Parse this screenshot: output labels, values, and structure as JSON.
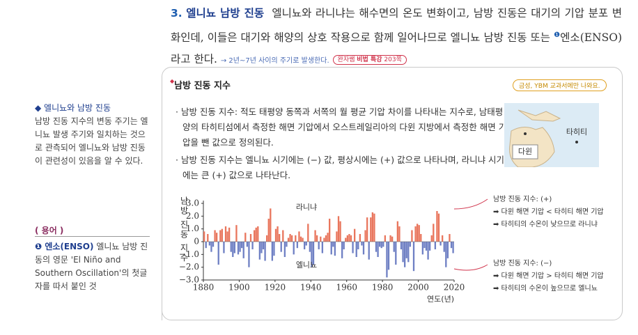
{
  "main": {
    "number": "3.",
    "heading": "엘니뇨 남방 진동",
    "body": "엘니뇨와 라니냐는 해수면의 온도 변화이고, 남방 진동은 대기의 기압 분포 변화인데, 이들은 대기와 해양의 상호 작용으로 함께 일어나므로 엘니뇨 남방 진동 또는 ",
    "footnote_mark": "❶",
    "body_end": "엔소(ENSO)라고 한다.",
    "note": "→ 2년~7년 사이의 주기로 발생한다.",
    "badge": {
      "top": "완자쌤",
      "main": "비법 특강",
      "page": "203쪽"
    }
  },
  "sidebar": {
    "title": "◆ 엘니뇨와 남방 진동",
    "text": "남방 진동 지수의 변동 주기는 엘니뇨 발생 주기와 일치하는 것으로 관측되어 엘니뇨와 남방 진동이 관련성이 있음을 알 수 있다.",
    "glossary_title": "( 용어 )",
    "glossary_term": "❶ 엔소(ENSO)",
    "glossary_text": "엘니뇨 남방 진동의 영문 'El Niño and Southern Oscillation'의 첫글자를 따서 붙인 것"
  },
  "box": {
    "title": "남방 진동 지수",
    "tag": "금성, YBM 교과서에만 나와요.",
    "bullets": [
      "남방 진동 지수: 적도 태평양 동쪽과 서쪽의 월 평균 기압 차이를 나타내는 지수로, 남태평양의 타히티섬에서 측정한 해면 기압에서 오스트레일리아의 다윈 지방에서 측정한 해면 기압을 뺀 값으로 정의된다.",
      "남방 진동 지수는 엘니뇨 시기에는 (−) 값, 평상시에는 (+) 값으로 나타나며, 라니냐 시기에는 큰 (+) 값으로 나타난다."
    ],
    "map_labels": [
      "다윈",
      "타히티"
    ],
    "notes": [
      {
        "heading": "남방 진동 지수: (+)",
        "lines": [
          "➡ 다윈 해면 기압 < 타히티 해면 기압",
          "➡ 타히티의 수온이 낮으므로 라니냐"
        ]
      },
      {
        "heading": "남방 진동 지수: (−)",
        "lines": [
          "➡ 다윈 해면 기압 > 타히티 해면 기압",
          "➡ 타히티의 수온이 높으므로 엘니뇨"
        ]
      }
    ]
  },
  "chart_data": {
    "type": "bar",
    "ylabel": "남방 진동 지수",
    "xlabel": "연도(년)",
    "annotations": [
      "라니냐",
      "엘니뇨"
    ],
    "positive_color": "#e9765d",
    "negative_color": "#6f80c4",
    "xlim": [
      1880,
      2020
    ],
    "xticks": [
      1880,
      1900,
      1920,
      1940,
      1960,
      1980,
      2000,
      2020
    ],
    "ylim": [
      -3,
      3
    ],
    "yticks": [
      {
        "value": 3,
        "label": "3.0"
      },
      {
        "value": 2,
        "label": "2.0"
      },
      {
        "value": 1,
        "label": "1.0"
      },
      0,
      {
        "value": -1,
        "label": "−1.0"
      },
      {
        "value": -2,
        "label": "−2.0"
      },
      {
        "value": -3,
        "label": "−3.0"
      }
    ],
    "x": [
      1880,
      1881,
      1882,
      1883,
      1884,
      1885,
      1886,
      1887,
      1888,
      1889,
      1890,
      1891,
      1892,
      1893,
      1894,
      1895,
      1896,
      1897,
      1898,
      1899,
      1900,
      1901,
      1902,
      1903,
      1904,
      1905,
      1906,
      1907,
      1908,
      1909,
      1910,
      1911,
      1912,
      1913,
      1914,
      1915,
      1916,
      1917,
      1918,
      1919,
      1920,
      1921,
      1922,
      1923,
      1924,
      1925,
      1926,
      1927,
      1928,
      1929,
      1930,
      1931,
      1932,
      1933,
      1934,
      1935,
      1936,
      1937,
      1938,
      1939,
      1940,
      1941,
      1942,
      1943,
      1944,
      1945,
      1946,
      1947,
      1948,
      1949,
      1950,
      1951,
      1952,
      1953,
      1954,
      1955,
      1956,
      1957,
      1958,
      1959,
      1960,
      1961,
      1962,
      1963,
      1964,
      1965,
      1966,
      1967,
      1968,
      1969,
      1970,
      1971,
      1972,
      1973,
      1974,
      1975,
      1976,
      1977,
      1978,
      1979,
      1980,
      1981,
      1982,
      1983,
      1984,
      1985,
      1986,
      1987,
      1988,
      1989,
      1990,
      1991,
      1992,
      1993,
      1994,
      1995,
      1996,
      1997,
      1998,
      1999,
      2000,
      2001,
      2002,
      2003,
      2004,
      2005,
      2006,
      2007,
      2008,
      2009,
      2010,
      2011,
      2012,
      2013,
      2014,
      2015,
      2016,
      2017,
      2018,
      2019
    ],
    "values": [
      0.8,
      -0.5,
      0.6,
      -0.3,
      -0.8,
      -0.4,
      0.9,
      0.7,
      -1.8,
      0.9,
      1.0,
      -0.9,
      1.2,
      0.8,
      1.1,
      -0.8,
      -1.2,
      -0.9,
      1.3,
      -1.0,
      -0.8,
      -0.5,
      -1.3,
      0.7,
      -0.4,
      -2.0,
      0.6,
      -0.6,
      0.9,
      1.1,
      1.2,
      -1.4,
      -0.9,
      -0.6,
      -1.5,
      0.5,
      1.8,
      2.6,
      -1.5,
      -1.1,
      1.0,
      1.2,
      0.6,
      -0.8,
      0.9,
      -1.2,
      -0.4,
      0.3,
      0.6,
      0.5,
      -1.0,
      0.5,
      -0.5,
      0.8,
      0.4,
      0.3,
      -0.6,
      -0.3,
      1.4,
      -0.8,
      -2.0,
      -1.8,
      0.9,
      0.5,
      -0.6,
      0.4,
      -0.9,
      0.3,
      0.5,
      0.7,
      1.8,
      -1.0,
      -0.4,
      -1.1,
      0.8,
      2.0,
      1.6,
      -1.3,
      -0.6,
      0.3,
      0.5,
      0.6,
      0.5,
      -0.9,
      1.0,
      -1.2,
      -0.6,
      0.6,
      -0.3,
      -1.0,
      0.9,
      1.9,
      -1.4,
      1.9,
      2.3,
      2.2,
      -0.8,
      -1.2,
      -0.4,
      -0.5,
      -0.4,
      0.5,
      -2.8,
      -2.2,
      0.5,
      0.4,
      -0.8,
      -1.8,
      1.6,
      1.2,
      -0.6,
      -1.6,
      -2.0,
      -1.3,
      -1.6,
      -0.4,
      0.9,
      -2.3,
      1.2,
      1.4,
      1.3,
      0.6,
      -1.0,
      -0.5,
      -0.7,
      -1.4,
      -0.7,
      0.5,
      1.4,
      -0.6,
      2.4,
      2.2,
      -0.3,
      0.5,
      -0.8,
      -2.0,
      -1.3,
      0.6,
      -0.5,
      -0.9
    ]
  }
}
